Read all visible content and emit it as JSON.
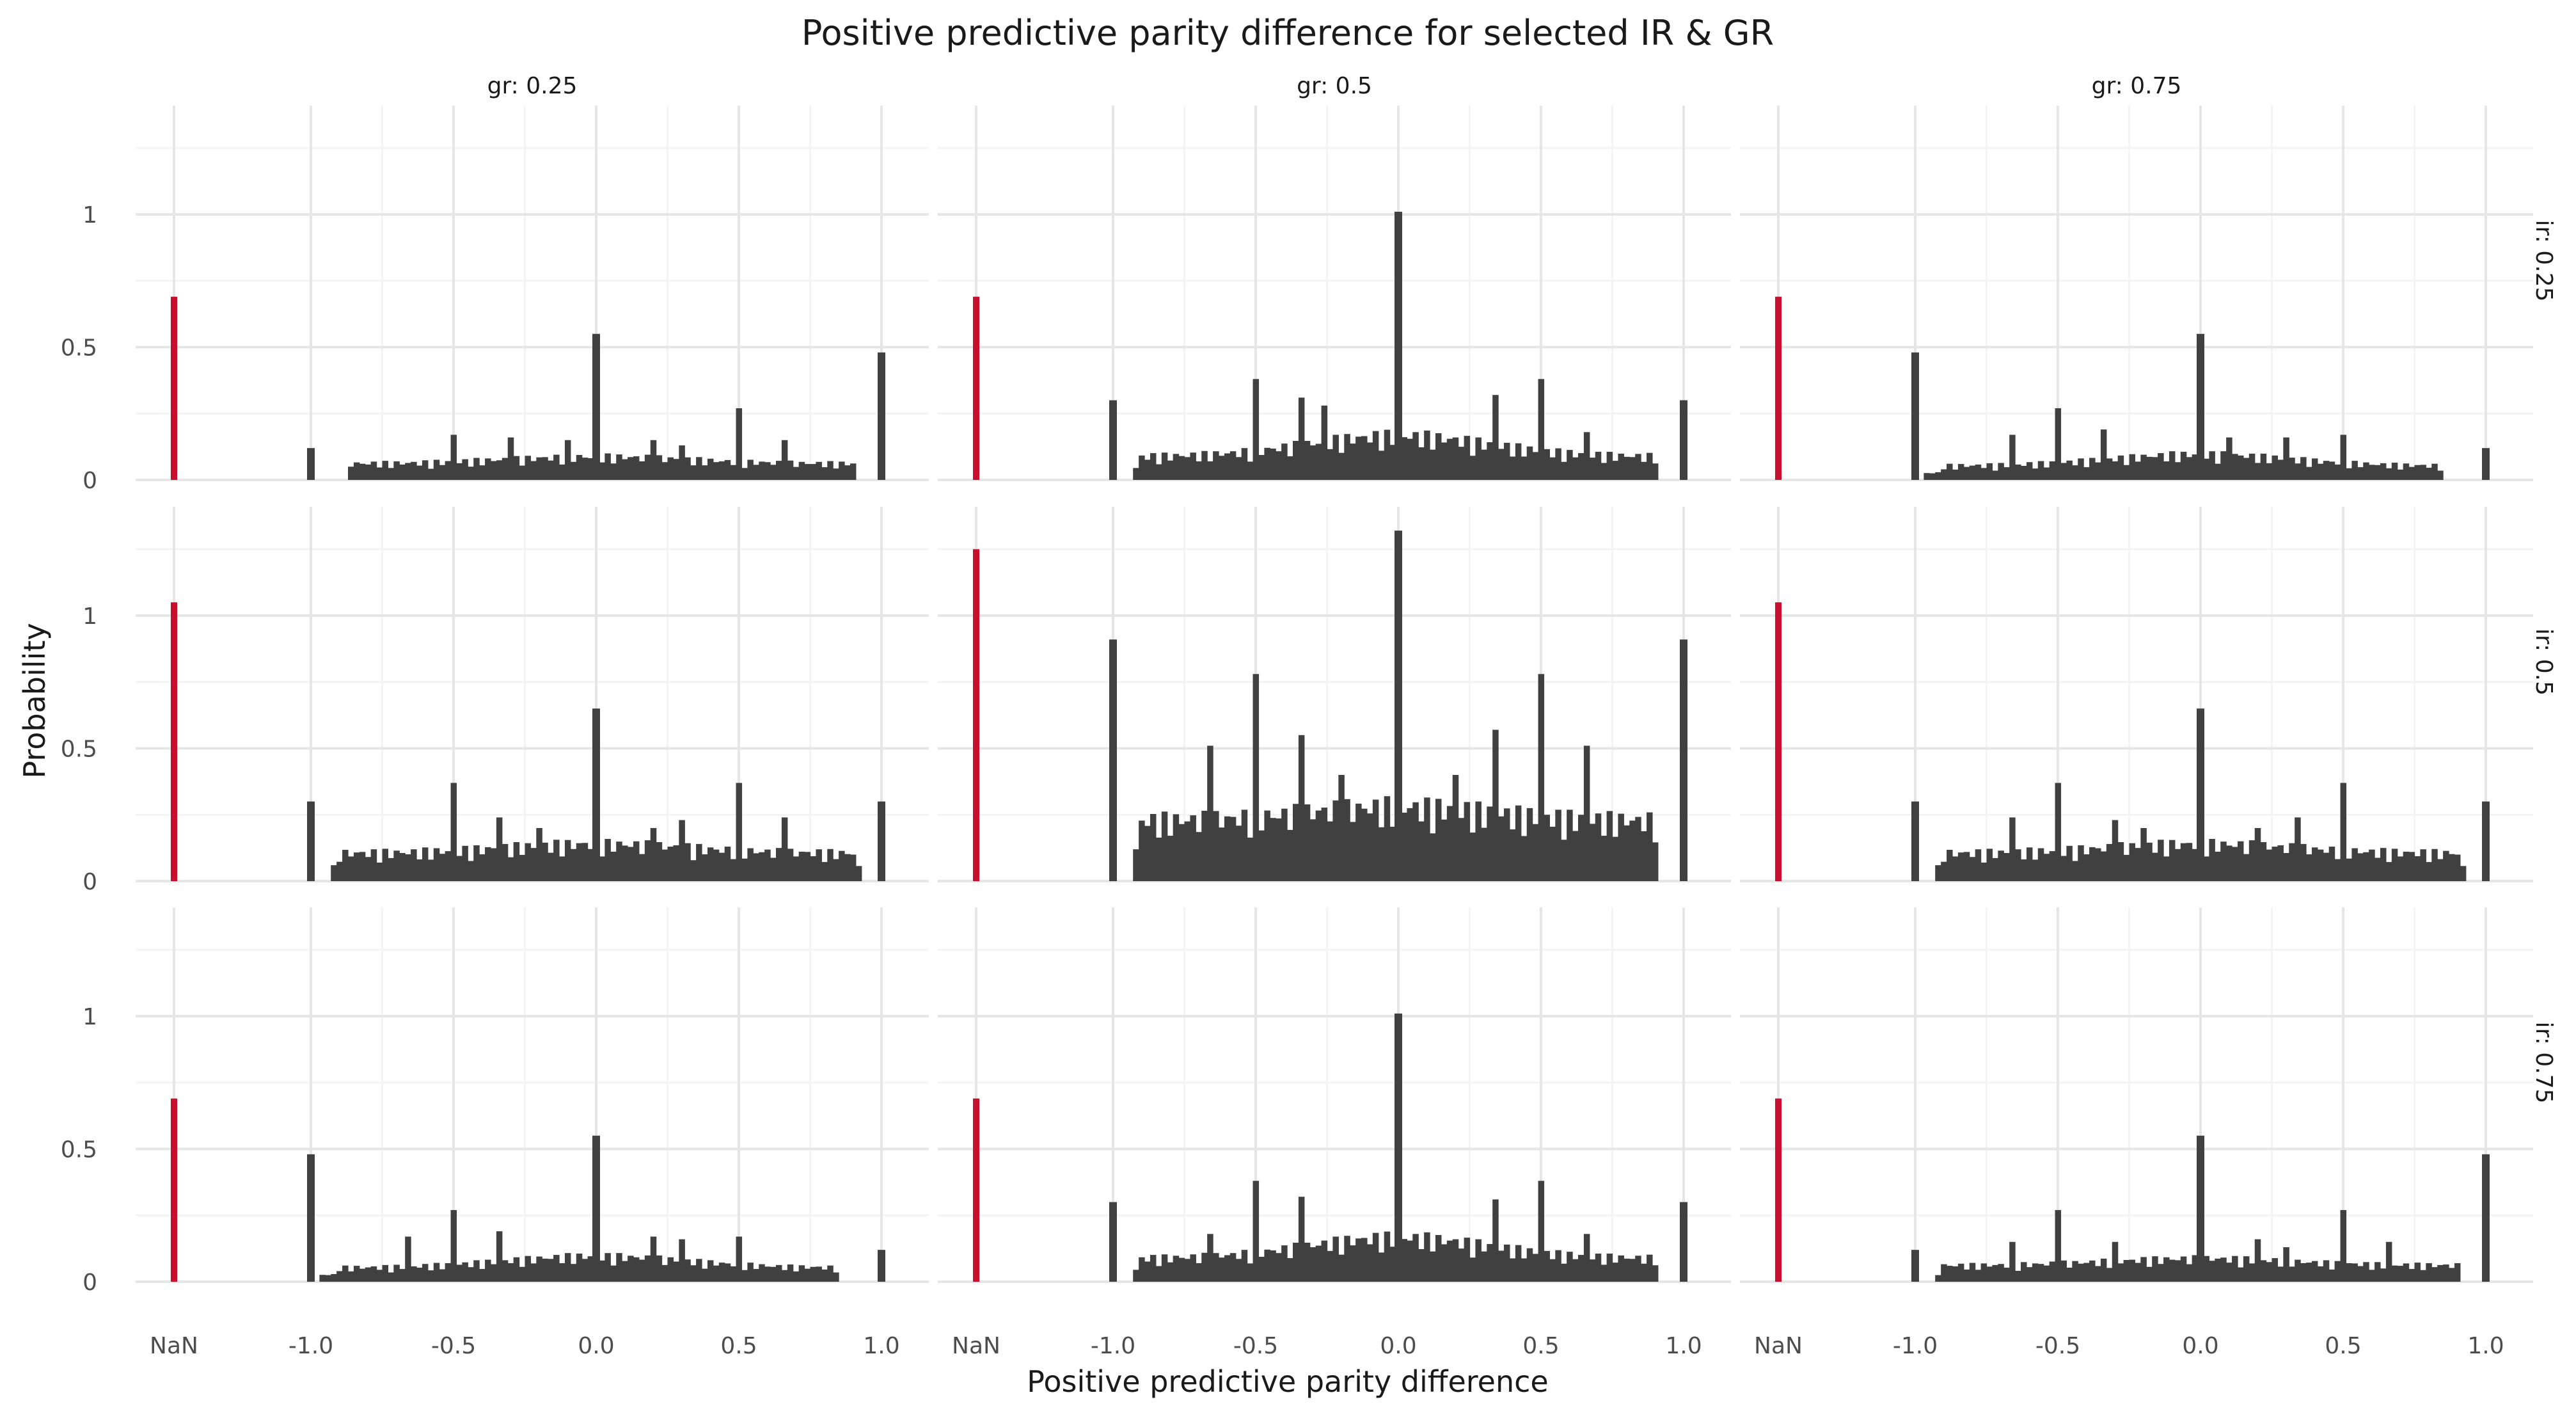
{
  "chart_data": {
    "type": "bar",
    "title": "Positive predictive parity difference for selected IR & GR",
    "xlabel": "Positive predictive parity difference",
    "ylabel": "Probability",
    "x_tick_labels": [
      "NaN",
      "-1.0",
      "-0.5",
      "0.0",
      "0.5",
      "1.0"
    ],
    "y_tick_labels": [
      "0",
      "0.5",
      "1"
    ],
    "ylim": [
      0,
      1.38
    ],
    "grid": true,
    "column_strips": [
      "gr: 0.25",
      "gr: 0.5",
      "gr: 0.75"
    ],
    "row_strips": [
      "ir: 0.25",
      "ir: 0.5",
      "ir: 0.75"
    ],
    "colors": {
      "nan_bar": "#c8102e",
      "bars": "#404040",
      "grid_major": "#e6e6e6",
      "grid_minor": "#f4f4f4",
      "panel_bg": "#ffffff"
    },
    "bin_width": 0.02,
    "panels": [
      {
        "gr": "gr: 0.25",
        "ir": "ir: 0.25",
        "nan_value": 0.69,
        "at_minus_one": 0.12,
        "at_zero": 0.55,
        "at_one": 0.48,
        "body_start": -0.86,
        "body_end": 0.92,
        "body_level": 0.07,
        "body_rise": 0.03,
        "peaks": [
          [
            -0.5,
            0.17
          ],
          [
            -0.3,
            0.16
          ],
          [
            -0.1,
            0.15
          ],
          [
            0.2,
            0.15
          ],
          [
            0.3,
            0.13
          ],
          [
            0.5,
            0.27
          ],
          [
            0.66,
            0.15
          ]
        ]
      },
      {
        "gr": "gr: 0.5",
        "ir": "ir: 0.25",
        "nan_value": 0.69,
        "at_minus_one": 0.3,
        "at_zero": 1.01,
        "at_one": 0.3,
        "body_start": -0.92,
        "body_end": 0.92,
        "body_level": 0.1,
        "body_rise": 0.09,
        "peaks": [
          [
            -0.5,
            0.38
          ],
          [
            -0.34,
            0.31
          ],
          [
            -0.26,
            0.28
          ],
          [
            0.34,
            0.32
          ],
          [
            0.5,
            0.38
          ],
          [
            0.66,
            0.18
          ]
        ]
      },
      {
        "gr": "gr: 0.75",
        "ir": "ir: 0.25",
        "nan_value": 0.69,
        "at_minus_one": 0.48,
        "at_zero": 0.55,
        "at_one": 0.12,
        "body_start": -0.96,
        "body_end": 0.86,
        "body_level": 0.06,
        "body_rise": 0.05,
        "peaks": [
          [
            -0.66,
            0.17
          ],
          [
            -0.5,
            0.27
          ],
          [
            -0.34,
            0.19
          ],
          [
            0.1,
            0.16
          ],
          [
            0.3,
            0.16
          ],
          [
            0.5,
            0.17
          ]
        ]
      },
      {
        "gr": "gr: 0.25",
        "ir": "ir: 0.5",
        "nan_value": 1.05,
        "at_minus_one": 0.3,
        "at_zero": 0.65,
        "at_one": 0.3,
        "body_start": -0.92,
        "body_end": 0.94,
        "body_level": 0.12,
        "body_rise": 0.04,
        "peaks": [
          [
            -0.5,
            0.37
          ],
          [
            -0.34,
            0.24
          ],
          [
            -0.2,
            0.2
          ],
          [
            0.2,
            0.2
          ],
          [
            0.3,
            0.23
          ],
          [
            0.5,
            0.37
          ],
          [
            0.66,
            0.24
          ]
        ]
      },
      {
        "gr": "gr: 0.5",
        "ir": "ir: 0.5",
        "nan_value": 1.25,
        "at_minus_one": 0.91,
        "at_zero": 1.32,
        "at_one": 0.91,
        "body_start": -0.92,
        "body_end": 0.92,
        "body_level": 0.26,
        "body_rise": 0.06,
        "peaks": [
          [
            -0.66,
            0.51
          ],
          [
            -0.5,
            0.78
          ],
          [
            -0.34,
            0.55
          ],
          [
            -0.2,
            0.4
          ],
          [
            0.2,
            0.4
          ],
          [
            0.34,
            0.57
          ],
          [
            0.5,
            0.78
          ],
          [
            0.66,
            0.51
          ]
        ]
      },
      {
        "gr": "gr: 0.75",
        "ir": "ir: 0.5",
        "nan_value": 1.05,
        "at_minus_one": 0.3,
        "at_zero": 0.65,
        "at_one": 0.3,
        "body_start": -0.92,
        "body_end": 0.94,
        "body_level": 0.12,
        "body_rise": 0.04,
        "peaks": [
          [
            -0.66,
            0.24
          ],
          [
            -0.5,
            0.37
          ],
          [
            -0.3,
            0.23
          ],
          [
            -0.2,
            0.2
          ],
          [
            0.2,
            0.2
          ],
          [
            0.34,
            0.24
          ],
          [
            0.5,
            0.37
          ]
        ]
      },
      {
        "gr": "gr: 0.25",
        "ir": "ir: 0.75",
        "nan_value": 0.69,
        "at_minus_one": 0.48,
        "at_zero": 0.55,
        "at_one": 0.12,
        "body_start": -0.96,
        "body_end": 0.86,
        "body_level": 0.06,
        "body_rise": 0.05,
        "peaks": [
          [
            -0.66,
            0.17
          ],
          [
            -0.5,
            0.27
          ],
          [
            -0.34,
            0.19
          ],
          [
            0.2,
            0.17
          ],
          [
            0.3,
            0.16
          ],
          [
            0.5,
            0.17
          ]
        ]
      },
      {
        "gr": "gr: 0.5",
        "ir": "ir: 0.75",
        "nan_value": 0.69,
        "at_minus_one": 0.3,
        "at_zero": 1.01,
        "at_one": 0.3,
        "body_start": -0.92,
        "body_end": 0.92,
        "body_level": 0.1,
        "body_rise": 0.09,
        "peaks": [
          [
            -0.66,
            0.18
          ],
          [
            -0.5,
            0.38
          ],
          [
            -0.34,
            0.32
          ],
          [
            0.34,
            0.31
          ],
          [
            0.5,
            0.38
          ],
          [
            0.66,
            0.18
          ]
        ]
      },
      {
        "gr": "gr: 0.75",
        "ir": "ir: 0.75",
        "nan_value": 0.69,
        "at_minus_one": 0.12,
        "at_zero": 0.55,
        "at_one": 0.48,
        "body_start": -0.92,
        "body_end": 0.92,
        "body_level": 0.07,
        "body_rise": 0.03,
        "peaks": [
          [
            -0.66,
            0.15
          ],
          [
            -0.5,
            0.27
          ],
          [
            -0.3,
            0.15
          ],
          [
            0.2,
            0.16
          ],
          [
            0.3,
            0.13
          ],
          [
            0.5,
            0.27
          ],
          [
            0.66,
            0.15
          ]
        ]
      }
    ]
  }
}
